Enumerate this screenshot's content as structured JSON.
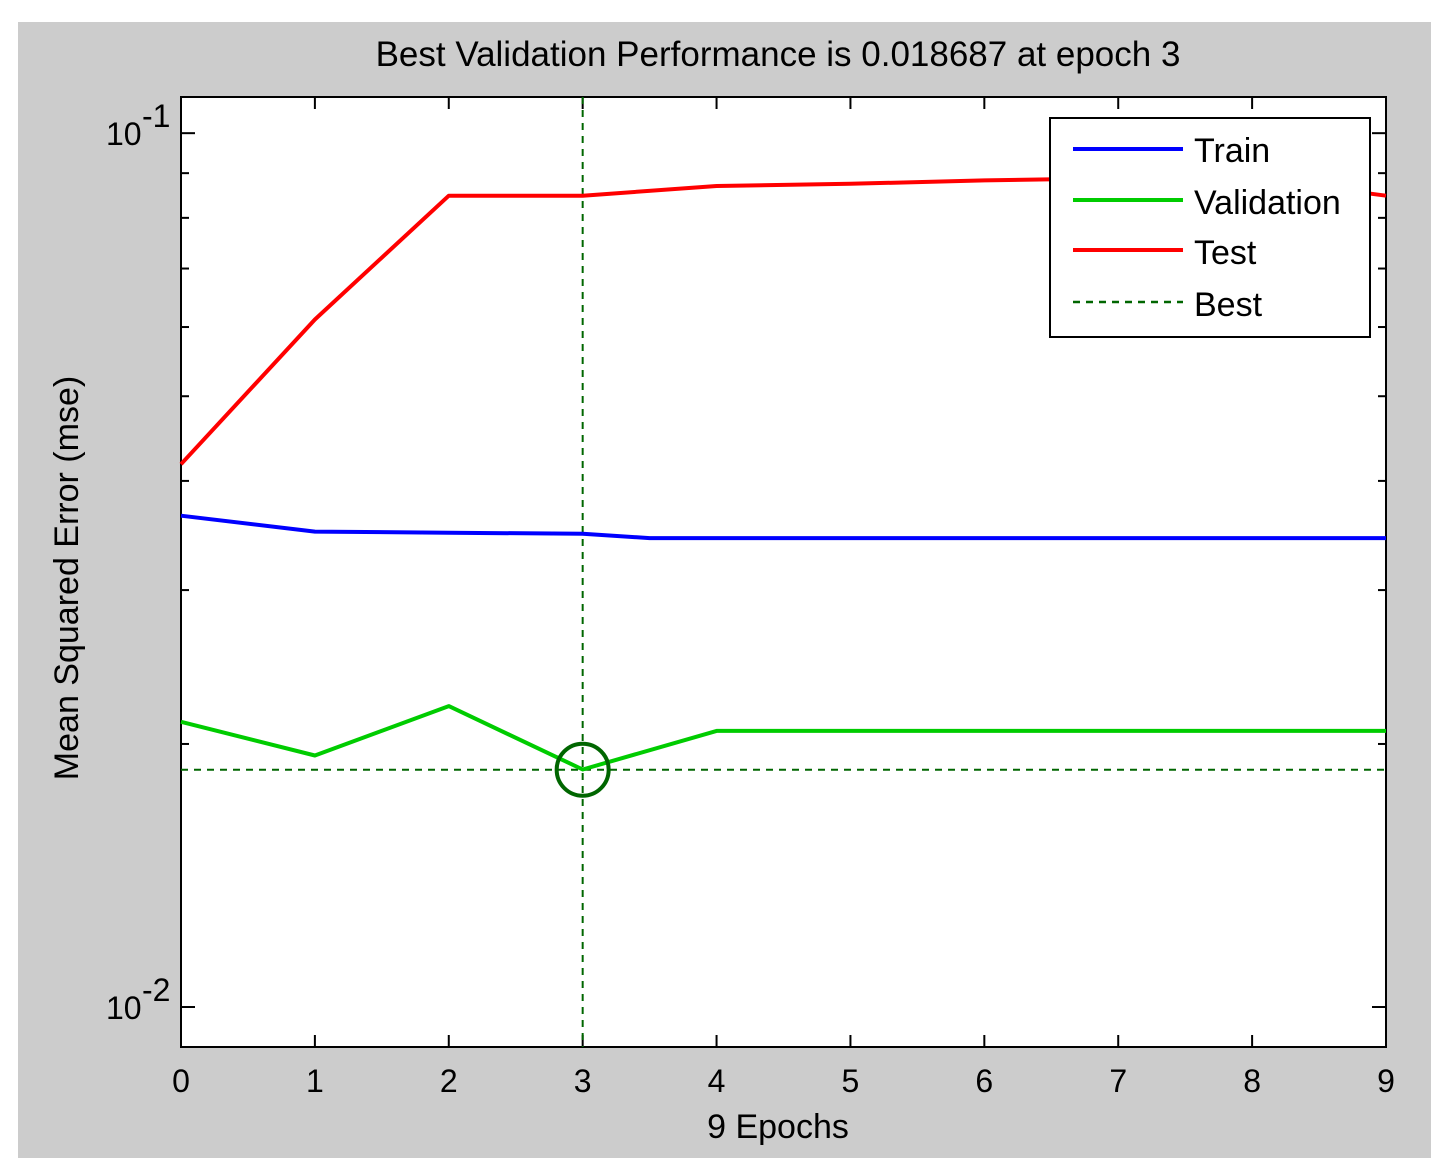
{
  "chart_data": {
    "type": "line",
    "title": "Best Validation Performance is 0.018687 at epoch 3",
    "xlabel": "9 Epochs",
    "ylabel": "Mean Squared Error  (mse)",
    "xlim": [
      0,
      9
    ],
    "ylim": [
      0.009,
      0.11
    ],
    "yscale": "log",
    "x": [
      0,
      1,
      2,
      3,
      4,
      5,
      6,
      7,
      8,
      9
    ],
    "x_ticks": [
      "0",
      "1",
      "2",
      "3",
      "4",
      "5",
      "6",
      "7",
      "8",
      "9"
    ],
    "y_ticks": [
      {
        "value": 0.1,
        "base": "10",
        "exp": "-1"
      },
      {
        "value": 0.01,
        "base": "10",
        "exp": "-2"
      }
    ],
    "grid": false,
    "legend_position": "top-right",
    "series": [
      {
        "name": "Train",
        "color": "#0000ff",
        "style": "solid",
        "x": [
          0,
          1,
          2,
          3,
          3.5,
          4,
          5,
          6,
          7,
          8,
          9
        ],
        "values": [
          0.0365,
          0.035,
          0.0349,
          0.0348,
          0.0344,
          0.0344,
          0.0344,
          0.0344,
          0.0344,
          0.0344,
          0.0344
        ]
      },
      {
        "name": "Validation",
        "color": "#00cc00",
        "style": "solid",
        "x": [
          0,
          1,
          2,
          3,
          4,
          5,
          6,
          7,
          8,
          9
        ],
        "values": [
          0.0212,
          0.0194,
          0.0221,
          0.0187,
          0.0207,
          0.0207,
          0.0207,
          0.0207,
          0.0207,
          0.0207
        ]
      },
      {
        "name": "Test",
        "color": "#ff0000",
        "style": "solid",
        "x": [
          0,
          1,
          2,
          3,
          4,
          5,
          6,
          7,
          8,
          9
        ],
        "values": [
          0.0418,
          0.0612,
          0.0848,
          0.0848,
          0.087,
          0.0875,
          0.0883,
          0.0888,
          0.0888,
          0.0848
        ]
      },
      {
        "name": "Best",
        "color": "#006600",
        "style": "dashed",
        "best_epoch": 3,
        "best_value": 0.018687
      }
    ]
  }
}
